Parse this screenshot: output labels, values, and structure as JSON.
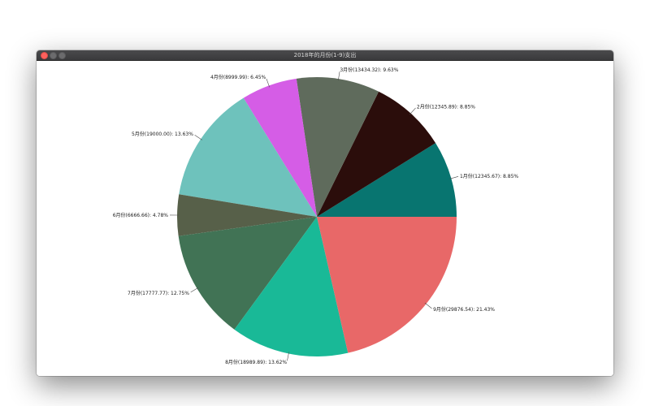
{
  "window": {
    "title": "2018年的月份(1-9)支出"
  },
  "chart_data": {
    "type": "pie",
    "title": "2018年的月份(1-9)支出",
    "start_angle_deg": 0,
    "direction": "counterclockwise",
    "slices": [
      {
        "label": "1月份(12345.67): 8.85%",
        "value": 12345.67,
        "percent": 8.85,
        "color": "#087570"
      },
      {
        "label": "2月份(12345.89): 8.85%",
        "value": 12345.89,
        "percent": 8.85,
        "color": "#2b0d0b"
      },
      {
        "label": "3月份(13434.32): 9.63%",
        "value": 13434.32,
        "percent": 9.63,
        "color": "#5f6b5c"
      },
      {
        "label": "4月份(8999.99): 6.45%",
        "value": 8999.99,
        "percent": 6.45,
        "color": "#d55de6"
      },
      {
        "label": "5月份(19000.00): 13.63%",
        "value": 19000.0,
        "percent": 13.63,
        "color": "#6ec2bc"
      },
      {
        "label": "6月份(6666.66): 4.78%",
        "value": 6666.66,
        "percent": 4.78,
        "color": "#576049"
      },
      {
        "label": "7月份(17777.77): 12.75%",
        "value": 17777.77,
        "percent": 12.75,
        "color": "#417355"
      },
      {
        "label": "8月份(18989.89): 13.62%",
        "value": 18989.89,
        "percent": 13.62,
        "color": "#19b997"
      },
      {
        "label": "9月份(29876.54): 21.43%",
        "value": 29876.54,
        "percent": 21.43,
        "color": "#e86868"
      }
    ]
  }
}
